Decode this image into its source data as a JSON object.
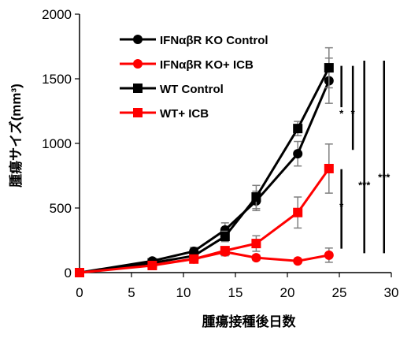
{
  "chart_data": {
    "type": "line",
    "title": "",
    "xlabel": "腫瘍接種後日数",
    "ylabel": "腫瘍サイズ(mm³)",
    "xlim": [
      0,
      30
    ],
    "ylim": [
      0,
      2000
    ],
    "xticks": [
      "0",
      "5",
      "10",
      "15",
      "20",
      "25",
      "30"
    ],
    "yticks": [
      "0",
      "500",
      "1000",
      "1500",
      "2000"
    ],
    "grid": false,
    "legend_position": "top-left",
    "x": [
      0,
      7,
      11,
      14,
      17,
      21,
      24
    ],
    "series": [
      {
        "name": "IFNαβR KO Control",
        "color": "#000000",
        "marker": "circle",
        "values": [
          0,
          90,
          165,
          330,
          555,
          920,
          1485
        ],
        "errors": [
          0,
          15,
          30,
          55,
          75,
          95,
          175
        ]
      },
      {
        "name": "IFNαβR KO+ ICB",
        "color": "#ff0000",
        "marker": "circle",
        "values": [
          0,
          60,
          105,
          160,
          115,
          90,
          135
        ],
        "errors": [
          0,
          12,
          18,
          30,
          20,
          15,
          55
        ]
      },
      {
        "name": "WT Control",
        "color": "#000000",
        "marker": "square",
        "values": [
          0,
          75,
          130,
          280,
          585,
          1115,
          1585
        ],
        "errors": [
          0,
          12,
          25,
          40,
          90,
          55,
          155
        ]
      },
      {
        "name": "WT+ ICB",
        "color": "#ff0000",
        "marker": "square",
        "values": [
          0,
          55,
          105,
          170,
          225,
          465,
          805
        ],
        "errors": [
          0,
          10,
          20,
          30,
          60,
          120,
          190
        ]
      }
    ],
    "significance": [
      {
        "label": "*",
        "x_value": 25.2,
        "y_from": 1280,
        "y_to": 1600,
        "label_y": 1235
      },
      {
        "label": "*",
        "x_value": 26.3,
        "y_from": 950,
        "y_to": 1600,
        "label_y": 1235
      },
      {
        "label": "*",
        "x_value": 25.2,
        "y_from": 185,
        "y_to": 800,
        "label_y": 515
      },
      {
        "label": "***",
        "x_value": 27.4,
        "y_from": 150,
        "y_to": 1640,
        "label_y": 680
      },
      {
        "label": "***",
        "x_value": 29.3,
        "y_from": 150,
        "y_to": 1640,
        "label_y": 740
      }
    ]
  }
}
